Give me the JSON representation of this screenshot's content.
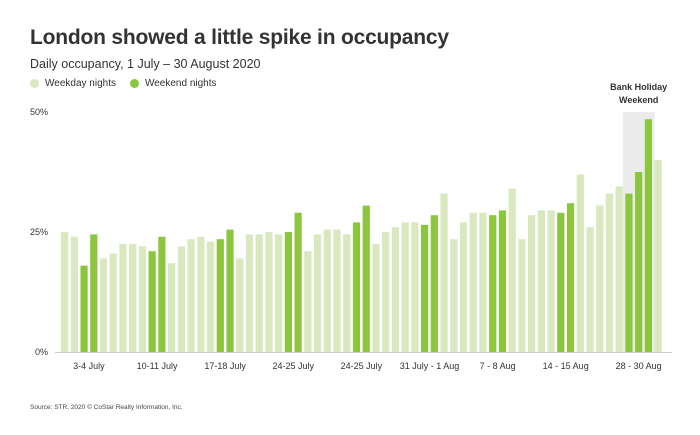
{
  "title": "London showed a little spike in occupancy",
  "subtitle": "Daily occupancy, 1 July – 30 August 2020",
  "source": "Source: STR. 2020 © CoStar Realty Information, Inc.",
  "colors": {
    "weekday": "#d9e8bf",
    "weekend": "#8cc63f",
    "highlight": "#ebebeb",
    "axis": "#cccccc"
  },
  "chart_data": {
    "type": "bar",
    "title": "London showed a little spike in occupancy",
    "subtitle": "Daily occupancy, 1 July – 30 August 2020",
    "xlabel": "",
    "ylabel": "",
    "ylim": [
      0,
      50
    ],
    "y_ticks": [
      0,
      25,
      50
    ],
    "y_tick_labels": [
      "0%",
      "25%",
      "50%"
    ],
    "legend": [
      {
        "name": "Weekday nights",
        "color": "#d9e8bf"
      },
      {
        "name": "Weekend nights",
        "color": "#8cc63f"
      }
    ],
    "legend_position": "top-left",
    "grid": false,
    "x_tick_labels": [
      {
        "label": "3-4 July",
        "days": [
          3,
          4
        ]
      },
      {
        "label": "10-11 July",
        "days": [
          10,
          11
        ]
      },
      {
        "label": "17-18 July",
        "days": [
          17,
          18
        ]
      },
      {
        "label": "24-25 July",
        "days": [
          24,
          25
        ]
      },
      {
        "label": "24-25 July",
        "days": [
          31,
          32
        ]
      },
      {
        "label": "31 July - 1 Aug",
        "days": [
          38,
          39
        ]
      },
      {
        "label": "7 - 8 Aug",
        "days": [
          45,
          46
        ]
      },
      {
        "label": "14 - 15 Aug",
        "days": [
          52,
          53
        ]
      },
      {
        "label": "28 - 30 Aug",
        "days": [
          59,
          61
        ]
      }
    ],
    "annotation": {
      "text_lines": [
        "Bank Holiday",
        "Weekend"
      ],
      "days": [
        59,
        61
      ]
    },
    "values": [
      25,
      24,
      18,
      24.5,
      19.5,
      20.5,
      22.5,
      22.5,
      22,
      21,
      24,
      18.5,
      22,
      23.5,
      24,
      23,
      23.5,
      25.5,
      19.5,
      24.5,
      24.5,
      25,
      24.5,
      25,
      29,
      21,
      24.5,
      25.5,
      25.5,
      24.5,
      27,
      30.5,
      22.5,
      25,
      26,
      27,
      27,
      26.5,
      28.5,
      33,
      23.5,
      27,
      29,
      29,
      28.5,
      29.5,
      34,
      23.5,
      28.5,
      29.5,
      29.5,
      29,
      31,
      37,
      26,
      30.5,
      33,
      34.5,
      33,
      37.5,
      48.5,
      40
    ],
    "weekend_days": [
      3,
      4,
      10,
      11,
      17,
      18,
      24,
      25,
      31,
      32,
      38,
      39,
      45,
      46,
      52,
      53,
      59,
      60,
      61
    ]
  }
}
